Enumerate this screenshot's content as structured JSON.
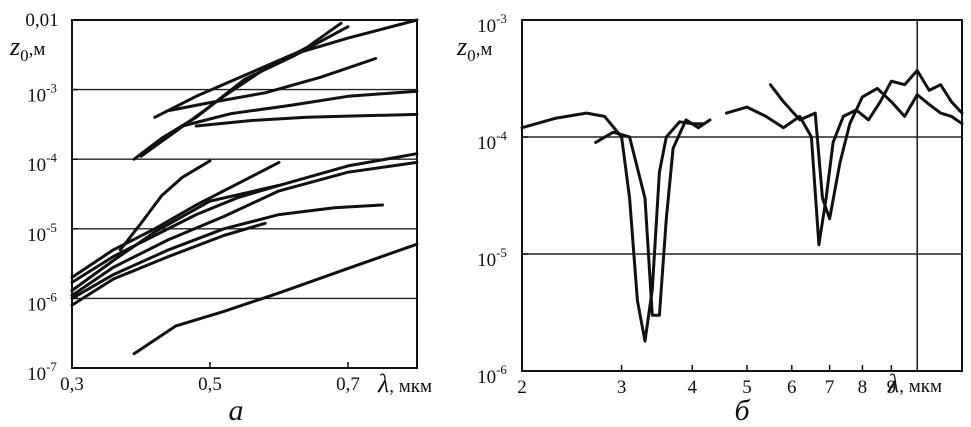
{
  "chart_data": [
    {
      "panel": "а",
      "type": "line",
      "x_scale": "linear",
      "y_scale": "log",
      "xlim": [
        0.3,
        0.8
      ],
      "ylim": [
        1e-07,
        0.01
      ],
      "ylabel_symbol": "z",
      "ylabel_sub": "0",
      "ylabel_unit": ",м",
      "xlabel_symbol": "λ",
      "xlabel_unit": ", мкм",
      "grid_y": [
        1e-06,
        1e-05,
        0.0001,
        0.001
      ],
      "xticks": [
        {
          "v": 0.3,
          "label": "0,3"
        },
        {
          "v": 0.5,
          "label": "0,5"
        },
        {
          "v": 0.7,
          "label": "0,7"
        }
      ],
      "yticks": [
        {
          "v": 1e-07,
          "base": "10",
          "exp": "-7"
        },
        {
          "v": 1e-06,
          "base": "10",
          "exp": "-6"
        },
        {
          "v": 1e-05,
          "base": "10",
          "exp": "-5"
        },
        {
          "v": 0.0001,
          "base": "10",
          "exp": "-4"
        },
        {
          "v": 0.001,
          "base": "10",
          "exp": "-3"
        },
        {
          "v": 0.01,
          "base": "0,01",
          "exp": ""
        }
      ],
      "series": [
        {
          "points": [
            [
              0.39,
              0.0001
            ],
            [
              0.43,
              0.0002
            ],
            [
              0.48,
              0.0004
            ],
            [
              0.55,
              0.0014
            ],
            [
              0.62,
              0.003
            ],
            [
              0.7,
              0.008
            ]
          ]
        },
        {
          "points": [
            [
              0.4,
              0.00011
            ],
            [
              0.45,
              0.00025
            ],
            [
              0.52,
              0.0008
            ],
            [
              0.58,
              0.002
            ],
            [
              0.64,
              0.004
            ],
            [
              0.69,
              0.009
            ]
          ]
        },
        {
          "points": [
            [
              0.42,
              0.0004
            ],
            [
              0.48,
              0.0008
            ],
            [
              0.55,
              0.0016
            ],
            [
              0.62,
              0.0032
            ],
            [
              0.7,
              0.0055
            ],
            [
              0.8,
              0.01
            ]
          ]
        },
        {
          "points": [
            [
              0.44,
              0.0005
            ],
            [
              0.5,
              0.00065
            ],
            [
              0.58,
              0.0009
            ],
            [
              0.66,
              0.0015
            ],
            [
              0.74,
              0.0028
            ]
          ]
        },
        {
          "points": [
            [
              0.46,
              0.0003
            ],
            [
              0.53,
              0.00045
            ],
            [
              0.62,
              0.0006
            ],
            [
              0.7,
              0.0008
            ],
            [
              0.8,
              0.00095
            ]
          ]
        },
        {
          "points": [
            [
              0.48,
              0.0003
            ],
            [
              0.56,
              0.00036
            ],
            [
              0.64,
              0.0004
            ],
            [
              0.72,
              0.00042
            ],
            [
              0.8,
              0.00044
            ]
          ]
        },
        {
          "points": [
            [
              0.37,
              5e-06
            ],
            [
              0.4,
              1.2e-05
            ],
            [
              0.43,
              3e-05
            ],
            [
              0.46,
              5.5e-05
            ],
            [
              0.5,
              9.5e-05
            ]
          ]
        },
        {
          "points": [
            [
              0.3,
              2e-06
            ],
            [
              0.36,
              5e-06
            ],
            [
              0.42,
              1e-05
            ],
            [
              0.48,
              2.2e-05
            ],
            [
              0.55,
              5e-05
            ],
            [
              0.6,
              9e-05
            ]
          ]
        },
        {
          "points": [
            [
              0.3,
              1.7e-06
            ],
            [
              0.36,
              4e-06
            ],
            [
              0.42,
              8e-06
            ],
            [
              0.48,
              1.6e-05
            ],
            [
              0.54,
              2.8e-05
            ],
            [
              0.6,
              4.2e-05
            ]
          ]
        },
        {
          "points": [
            [
              0.3,
              1.3e-06
            ],
            [
              0.36,
              3.5e-06
            ],
            [
              0.42,
              9e-06
            ],
            [
              0.5,
              2.5e-05
            ],
            [
              0.6,
              4.2e-05
            ],
            [
              0.7,
              8e-05
            ],
            [
              0.8,
              0.00012
            ]
          ]
        },
        {
          "points": [
            [
              0.3,
              1.1e-06
            ],
            [
              0.36,
              2.8e-06
            ],
            [
              0.44,
              7e-06
            ],
            [
              0.52,
              1.5e-05
            ],
            [
              0.6,
              3.5e-05
            ],
            [
              0.7,
              6.5e-05
            ],
            [
              0.8,
              9e-05
            ]
          ]
        },
        {
          "points": [
            [
              0.3,
              1e-06
            ],
            [
              0.36,
              2.2e-06
            ],
            [
              0.44,
              5e-06
            ],
            [
              0.52,
              1e-05
            ],
            [
              0.6,
              1.6e-05
            ],
            [
              0.68,
              2e-05
            ],
            [
              0.75,
              2.2e-05
            ]
          ]
        },
        {
          "points": [
            [
              0.3,
              8e-07
            ],
            [
              0.36,
              1.9e-06
            ],
            [
              0.44,
              4e-06
            ],
            [
              0.52,
              8e-06
            ],
            [
              0.58,
              1.2e-05
            ]
          ]
        },
        {
          "points": [
            [
              0.39,
              1.6e-07
            ],
            [
              0.45,
              4e-07
            ],
            [
              0.52,
              6.5e-07
            ],
            [
              0.6,
              1.2e-06
            ],
            [
              0.7,
              2.7e-06
            ],
            [
              0.8,
              6e-06
            ]
          ]
        }
      ]
    },
    {
      "panel": "б",
      "type": "line",
      "x_scale": "log",
      "y_scale": "log",
      "xlim": [
        2,
        12
      ],
      "ylim": [
        1e-06,
        0.001
      ],
      "ylabel_symbol": "z",
      "ylabel_sub": "0",
      "ylabel_unit": ",м",
      "xlabel_symbol": "λ",
      "xlabel_unit": ", мкм",
      "grid_y": [
        1e-05,
        0.0001
      ],
      "grid_x": [
        10
      ],
      "xticks": [
        {
          "v": 2,
          "label": "2"
        },
        {
          "v": 3,
          "label": "3"
        },
        {
          "v": 4,
          "label": "4"
        },
        {
          "v": 5,
          "label": "5"
        },
        {
          "v": 6,
          "label": "6"
        },
        {
          "v": 7,
          "label": "7"
        },
        {
          "v": 8,
          "label": "8"
        },
        {
          "v": 9,
          "label": "9"
        }
      ],
      "yticks": [
        {
          "v": 1e-06,
          "base": "10",
          "exp": "-6"
        },
        {
          "v": 1e-05,
          "base": "10",
          "exp": "-5"
        },
        {
          "v": 0.0001,
          "base": "10",
          "exp": "-4"
        },
        {
          "v": 0.001,
          "base": "10",
          "exp": "-3"
        }
      ],
      "series": [
        {
          "points": [
            [
              2.0,
              0.00012
            ],
            [
              2.3,
              0.000145
            ],
            [
              2.6,
              0.00016
            ],
            [
              2.8,
              0.00015
            ],
            [
              3.0,
              0.0001
            ],
            [
              3.1,
              3e-05
            ],
            [
              3.2,
              4e-06
            ],
            [
              3.3,
              1.8e-06
            ],
            [
              3.4,
              5e-06
            ],
            [
              3.5,
              5e-05
            ],
            [
              3.6,
              0.0001
            ],
            [
              3.8,
              0.000135
            ],
            [
              4.0,
              0.00013
            ],
            [
              4.2,
              0.00013
            ]
          ]
        },
        {
          "points": [
            [
              2.7,
              9e-05
            ],
            [
              2.9,
              0.00011
            ],
            [
              3.1,
              0.0001
            ],
            [
              3.3,
              3e-05
            ],
            [
              3.4,
              3e-06
            ],
            [
              3.5,
              3e-06
            ],
            [
              3.6,
              2e-05
            ],
            [
              3.7,
              8e-05
            ],
            [
              3.9,
              0.00014
            ],
            [
              4.1,
              0.00012
            ],
            [
              4.3,
              0.00014
            ]
          ]
        },
        {
          "points": [
            [
              4.6,
              0.00016
            ],
            [
              5.0,
              0.00018
            ],
            [
              5.4,
              0.00015
            ],
            [
              5.8,
              0.00012
            ],
            [
              6.2,
              0.00015
            ],
            [
              6.5,
              0.0001
            ],
            [
              6.7,
              1.2e-05
            ],
            [
              6.9,
              3e-05
            ],
            [
              7.1,
              9e-05
            ],
            [
              7.4,
              0.00015
            ],
            [
              7.8,
              0.00017
            ],
            [
              8.2,
              0.00014
            ],
            [
              8.6,
              0.0002
            ],
            [
              9.0,
              0.0003
            ],
            [
              9.5,
              0.00028
            ],
            [
              10.0,
              0.00037
            ],
            [
              10.5,
              0.00025
            ],
            [
              11.0,
              0.00028
            ],
            [
              11.5,
              0.0002
            ],
            [
              12.0,
              0.00016
            ]
          ]
        },
        {
          "points": [
            [
              5.5,
              0.00028
            ],
            [
              5.8,
              0.0002
            ],
            [
              6.2,
              0.00014
            ],
            [
              6.6,
              0.00016
            ],
            [
              6.8,
              3e-05
            ],
            [
              7.0,
              2e-05
            ],
            [
              7.3,
              6e-05
            ],
            [
              7.6,
              0.00013
            ],
            [
              8.0,
              0.00022
            ],
            [
              8.5,
              0.00026
            ],
            [
              9.0,
              0.0002
            ],
            [
              9.5,
              0.00015
            ],
            [
              10.0,
              0.00023
            ],
            [
              10.5,
              0.00019
            ],
            [
              11.0,
              0.00016
            ],
            [
              11.5,
              0.00015
            ],
            [
              12.0,
              0.00013
            ]
          ]
        }
      ]
    }
  ]
}
